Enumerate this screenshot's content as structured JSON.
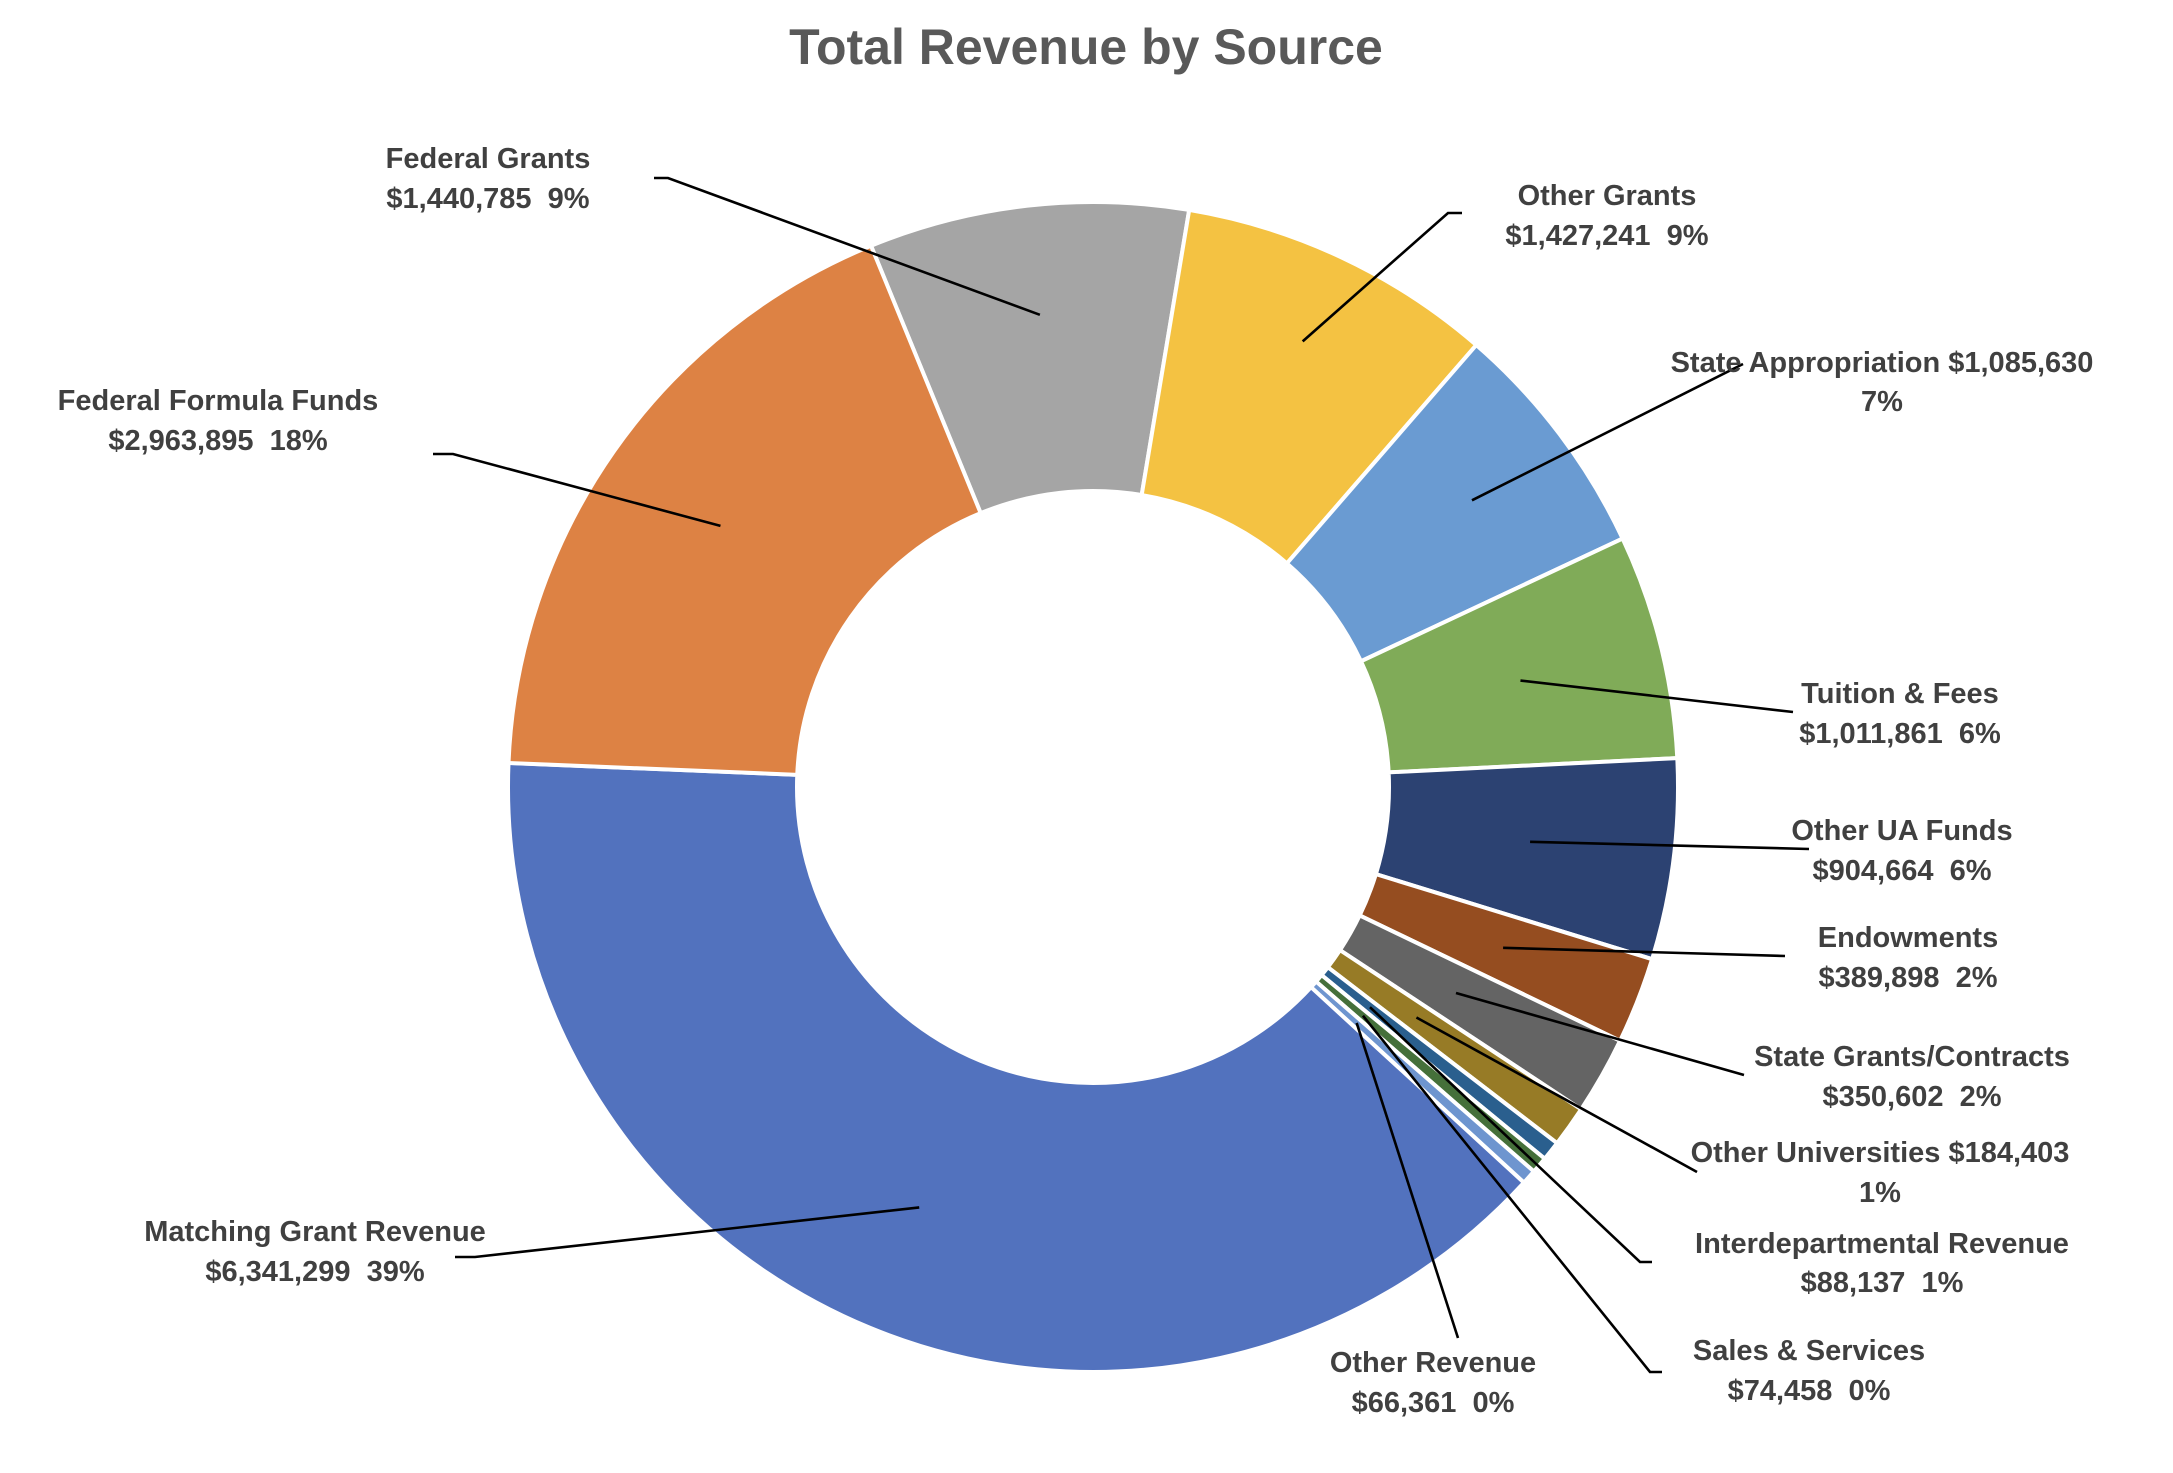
{
  "chart_data": {
    "type": "pie",
    "subtype": "doughnut",
    "title": "Total Revenue by Source",
    "legend": "none",
    "slices": [
      {
        "name": "Federal Grants",
        "value": 1440785,
        "value_label": "$1,440,785",
        "pct_label": "9%",
        "color": "#A5A5A5"
      },
      {
        "name": "Other Grants",
        "value": 1427241,
        "value_label": "$1,427,241",
        "pct_label": "9%",
        "color": "#F4C242"
      },
      {
        "name": "State Appropriation",
        "value": 1085630,
        "value_label": "$1,085,630",
        "pct_label": "7%",
        "color": "#6A9BD2"
      },
      {
        "name": "Tuition & Fees",
        "value": 1011861,
        "value_label": "$1,011,861",
        "pct_label": "6%",
        "color": "#80AB58"
      },
      {
        "name": "Other UA Funds",
        "value": 904664,
        "value_label": "$904,664",
        "pct_label": "6%",
        "color": "#2C4272"
      },
      {
        "name": "Endowments",
        "value": 389898,
        "value_label": "$389,898",
        "pct_label": "2%",
        "color": "#954D20"
      },
      {
        "name": "State Grants/Contracts",
        "value": 350602,
        "value_label": "$350,602",
        "pct_label": "2%",
        "color": "#646464"
      },
      {
        "name": "Other Universities",
        "value": 184403,
        "value_label": "$184,403",
        "pct_label": "1%",
        "color": "#977B26"
      },
      {
        "name": "Interdepartmental Revenue",
        "value": 88137,
        "value_label": "$88,137",
        "pct_label": "1%",
        "color": "#2A5F8E"
      },
      {
        "name": "Sales & Services",
        "value": 74458,
        "value_label": "$74,458",
        "pct_label": "0%",
        "color": "#45703A"
      },
      {
        "name": "Other Revenue",
        "value": 66361,
        "value_label": "$66,361",
        "pct_label": "0%",
        "color": "#6E95CF"
      },
      {
        "name": "Matching Grant Revenue",
        "value": 6341299,
        "value_label": "$6,341,299",
        "pct_label": "39%",
        "color": "#5272BE"
      },
      {
        "name": "Federal Formula Funds",
        "value": 2963895,
        "value_label": "$2,963,895",
        "pct_label": "18%",
        "color": "#DD8244"
      }
    ]
  }
}
